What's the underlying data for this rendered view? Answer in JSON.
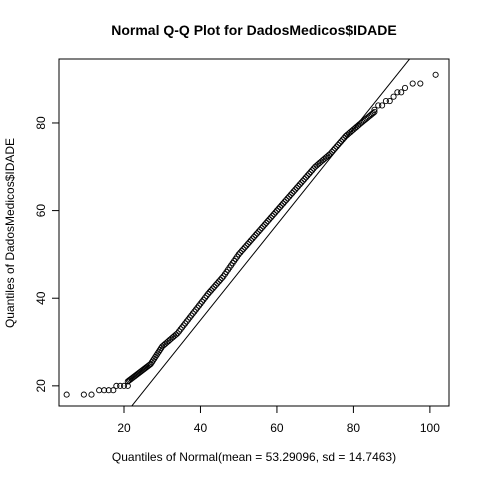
{
  "chart_data": {
    "type": "scatter",
    "title": "Normal Q-Q Plot for DadosMedicos$IDADE",
    "xlabel": "Quantiles of Normal(mean = 53.29096, sd = 14.7463)",
    "ylabel": "Quantiles of DadosMedicos$IDADE",
    "xlim": [
      3,
      105
    ],
    "ylim": [
      15.4,
      94.6
    ],
    "x_ticks": [
      20,
      40,
      60,
      80,
      100
    ],
    "y_ticks": [
      20,
      40,
      60,
      80
    ],
    "grid": false,
    "marker": "open-circle",
    "reference_line": {
      "intercept": -8.6,
      "slope": 1.09
    },
    "points_sparse": [
      {
        "x": 5,
        "y": 18
      },
      {
        "x": 9.5,
        "y": 18
      },
      {
        "x": 11.5,
        "y": 18
      },
      {
        "x": 13.5,
        "y": 19
      },
      {
        "x": 14.8,
        "y": 19
      },
      {
        "x": 16,
        "y": 19
      },
      {
        "x": 17.2,
        "y": 19
      },
      {
        "x": 18,
        "y": 20
      },
      {
        "x": 19,
        "y": 20
      },
      {
        "x": 20,
        "y": 20
      },
      {
        "x": 21,
        "y": 20
      },
      {
        "x": 85.5,
        "y": 83
      },
      {
        "x": 86.5,
        "y": 84
      },
      {
        "x": 87.5,
        "y": 84
      },
      {
        "x": 88.5,
        "y": 85
      },
      {
        "x": 89.5,
        "y": 85
      },
      {
        "x": 90.5,
        "y": 86
      },
      {
        "x": 91.5,
        "y": 87
      },
      {
        "x": 92.5,
        "y": 87
      },
      {
        "x": 93.5,
        "y": 88
      },
      {
        "x": 95.5,
        "y": 89
      },
      {
        "x": 97.5,
        "y": 89
      },
      {
        "x": 101.5,
        "y": 91
      }
    ],
    "points_dense_path": [
      {
        "x": 21,
        "y": 21
      },
      {
        "x": 24,
        "y": 23
      },
      {
        "x": 27,
        "y": 25
      },
      {
        "x": 30,
        "y": 29
      },
      {
        "x": 34,
        "y": 32
      },
      {
        "x": 38,
        "y": 36.5
      },
      {
        "x": 42,
        "y": 41
      },
      {
        "x": 46,
        "y": 45
      },
      {
        "x": 50,
        "y": 50
      },
      {
        "x": 54,
        "y": 54
      },
      {
        "x": 58,
        "y": 58
      },
      {
        "x": 62,
        "y": 62
      },
      {
        "x": 66,
        "y": 66
      },
      {
        "x": 70,
        "y": 70
      },
      {
        "x": 74,
        "y": 73
      },
      {
        "x": 78,
        "y": 77
      },
      {
        "x": 82,
        "y": 80
      },
      {
        "x": 85.5,
        "y": 82.5
      }
    ]
  }
}
